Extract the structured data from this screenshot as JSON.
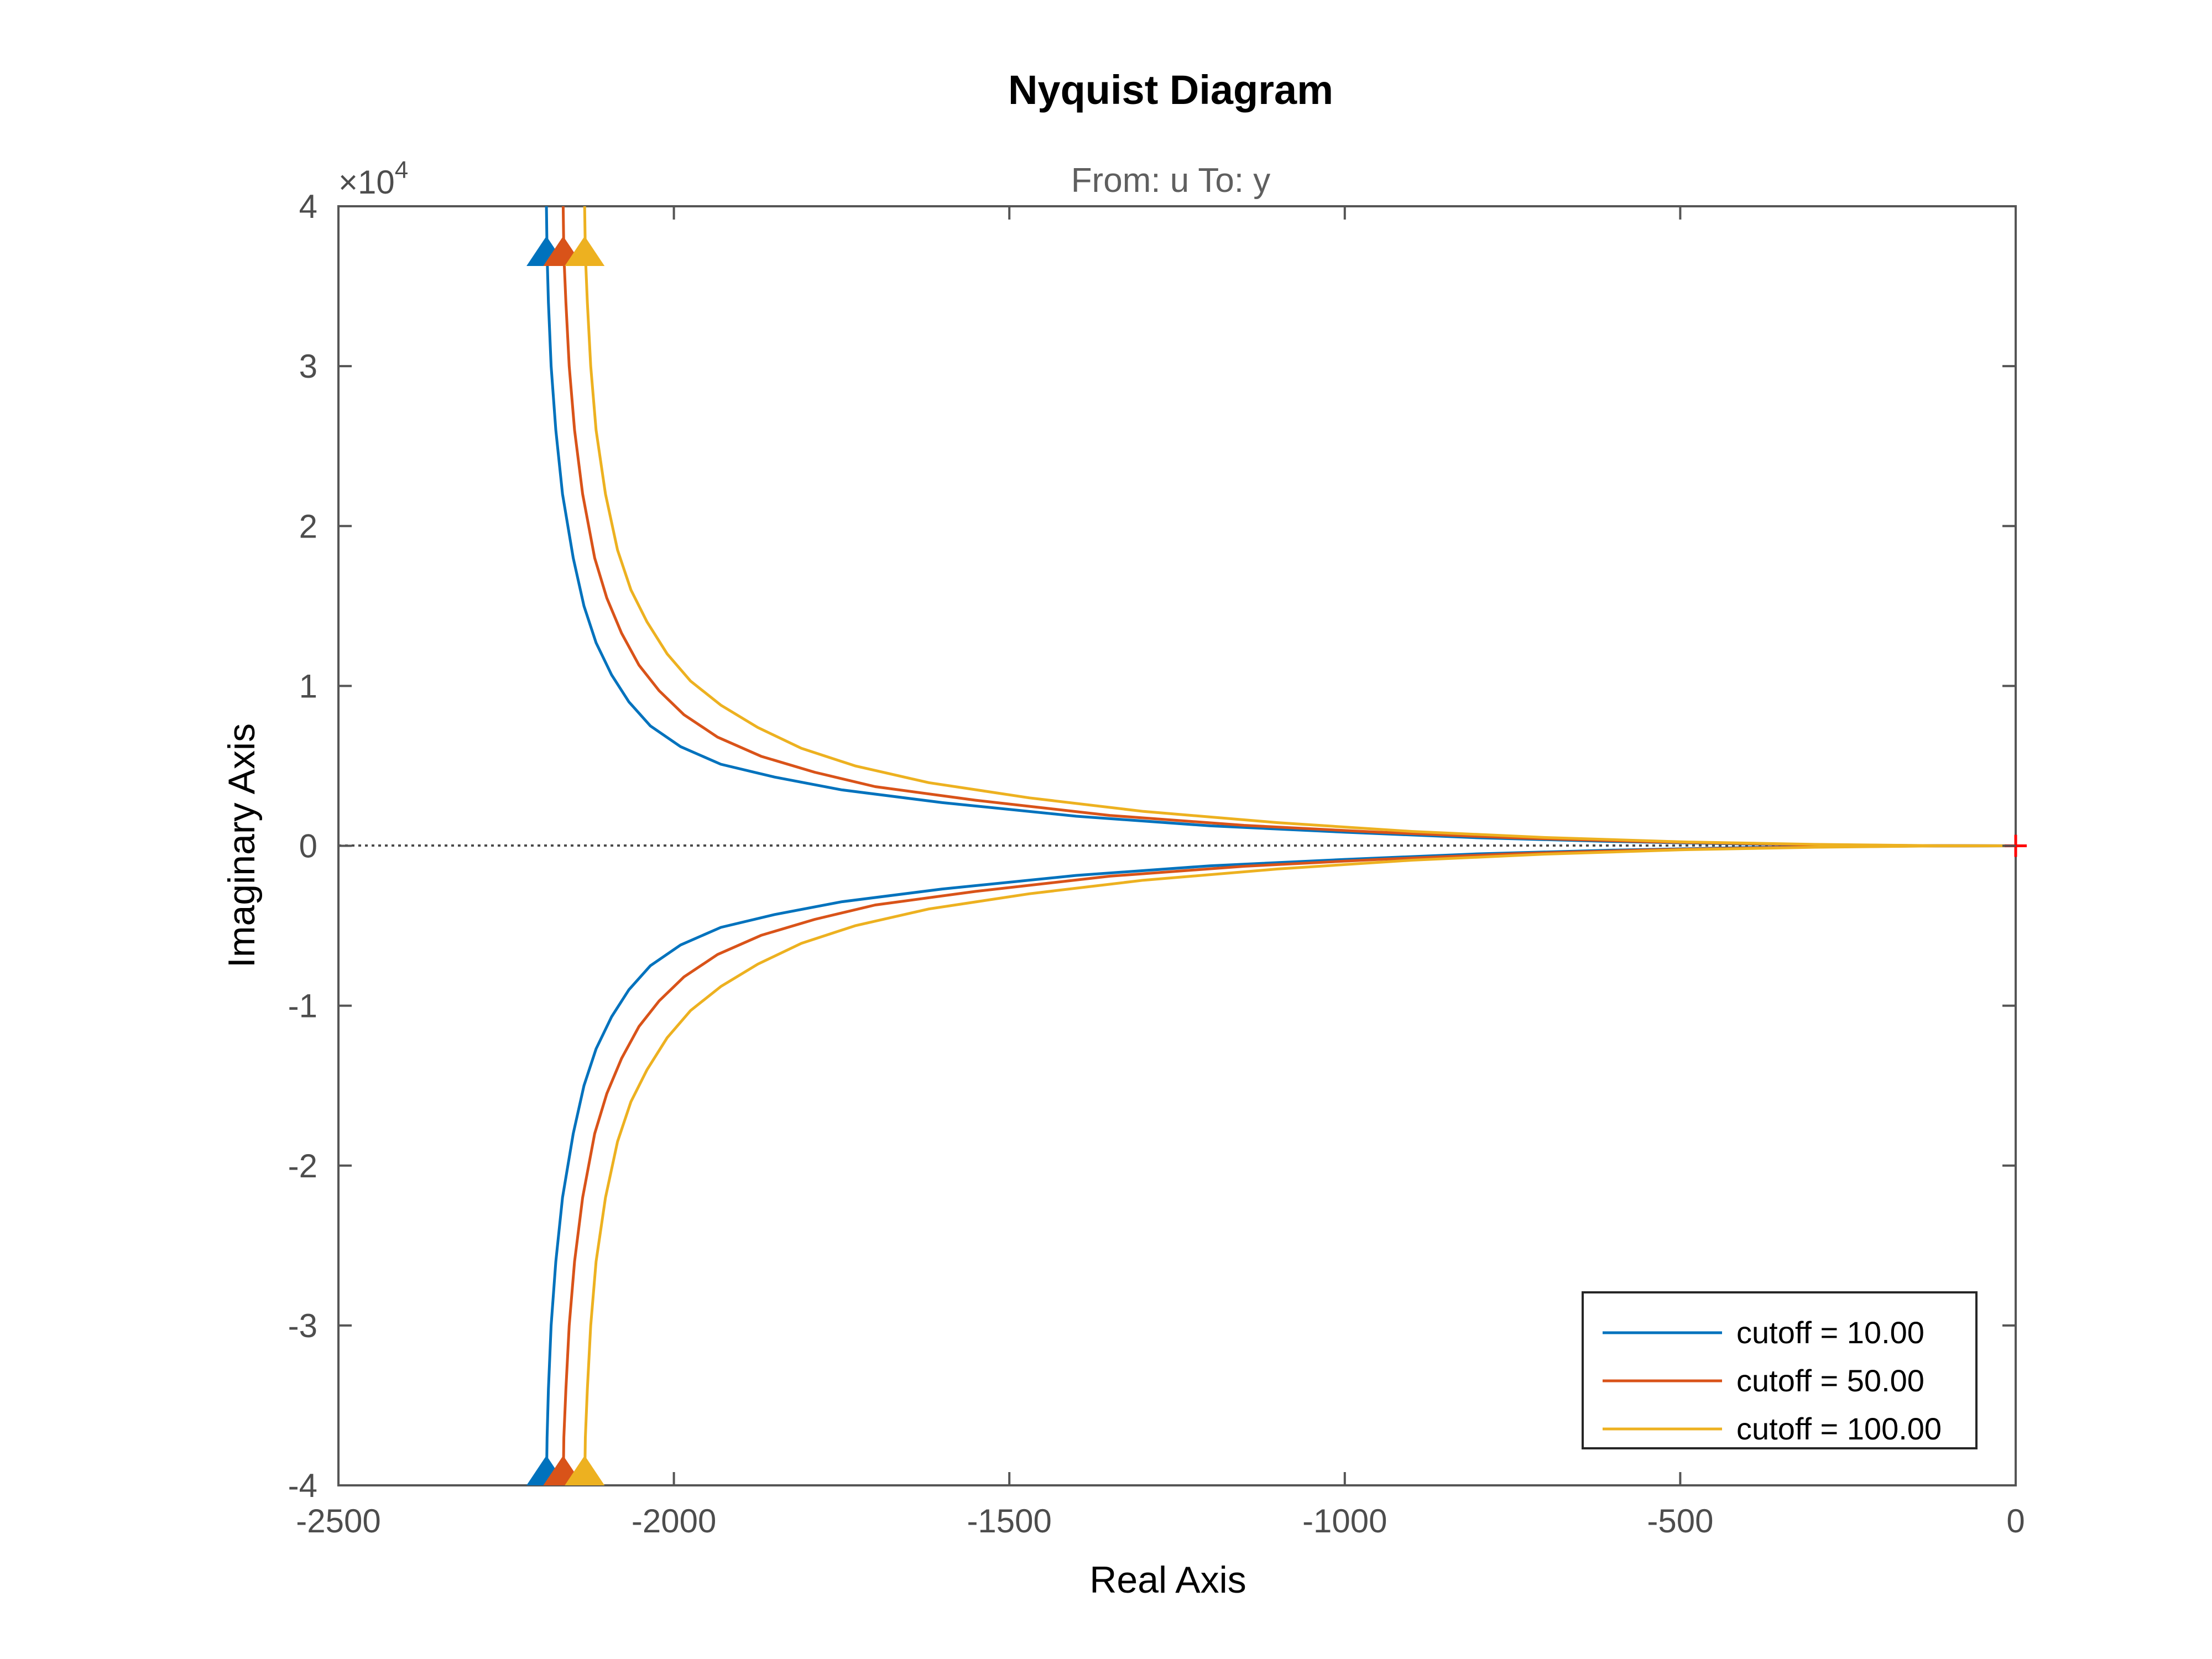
{
  "colors": {
    "background": "#ffffff",
    "axes": "#555555",
    "zero_line": "#4a4a4a",
    "critical_point": "#ff0000",
    "series": [
      "#0072BD",
      "#D95319",
      "#EDB120"
    ]
  },
  "chart_data": {
    "type": "line",
    "plot_kind": "Nyquist",
    "title": "Nyquist Diagram",
    "subtitle": "From: u  To: y",
    "xlabel": "Real Axis",
    "ylabel": "Imaginary Axis",
    "y_exponent_label": "×10",
    "y_exponent_power": "4",
    "y_scale": 10000,
    "xlim": [
      -2500,
      0
    ],
    "ylim": [
      -40000,
      40000
    ],
    "x_ticks": [
      -2500,
      -2000,
      -1500,
      -1000,
      -500,
      0
    ],
    "x_tick_labels": [
      "-2500",
      "-2000",
      "-1500",
      "-1000",
      "-500",
      "0"
    ],
    "y_ticks": [
      -40000,
      -30000,
      -20000,
      -10000,
      0,
      10000,
      20000,
      30000,
      40000
    ],
    "y_tick_labels": [
      "-4",
      "-3",
      "-2",
      "-1",
      "0",
      "1",
      "2",
      "3",
      "4"
    ],
    "grid": false,
    "zero_line": true,
    "critical_point": [
      0,
      0
    ],
    "legend_position": "bottom-right",
    "series": [
      {
        "name": "cutoff = 10.00",
        "arrow_x": -2190,
        "points": [
          [
            -2190,
            40000
          ],
          [
            -2189,
            37000
          ],
          [
            -2187,
            34000
          ],
          [
            -2183,
            30000
          ],
          [
            -2176,
            26000
          ],
          [
            -2166,
            22000
          ],
          [
            -2150,
            18000
          ],
          [
            -2134,
            15000
          ],
          [
            -2116,
            12700
          ],
          [
            -2093,
            10700
          ],
          [
            -2067,
            9000
          ],
          [
            -2035,
            7500
          ],
          [
            -1990,
            6200
          ],
          [
            -1930,
            5100
          ],
          [
            -1850,
            4300
          ],
          [
            -1750,
            3500
          ],
          [
            -1600,
            2700
          ],
          [
            -1400,
            1850
          ],
          [
            -1200,
            1250
          ],
          [
            -1000,
            850
          ],
          [
            -800,
            500
          ],
          [
            -600,
            270
          ],
          [
            -400,
            110
          ],
          [
            -200,
            25
          ],
          [
            0,
            0
          ]
        ]
      },
      {
        "name": "cutoff = 50.00",
        "arrow_x": -2165,
        "points": [
          [
            -2165,
            40000
          ],
          [
            -2164,
            37000
          ],
          [
            -2161,
            34000
          ],
          [
            -2156,
            30000
          ],
          [
            -2148,
            26000
          ],
          [
            -2136,
            22000
          ],
          [
            -2118,
            18000
          ],
          [
            -2100,
            15500
          ],
          [
            -2078,
            13300
          ],
          [
            -2052,
            11300
          ],
          [
            -2022,
            9700
          ],
          [
            -1985,
            8200
          ],
          [
            -1935,
            6800
          ],
          [
            -1870,
            5600
          ],
          [
            -1790,
            4600
          ],
          [
            -1700,
            3700
          ],
          [
            -1550,
            2850
          ],
          [
            -1350,
            1900
          ],
          [
            -1150,
            1280
          ],
          [
            -950,
            850
          ],
          [
            -750,
            500
          ],
          [
            -550,
            260
          ],
          [
            -350,
            100
          ],
          [
            -150,
            15
          ],
          [
            0,
            0
          ]
        ]
      },
      {
        "name": "cutoff = 100.00",
        "arrow_x": -2133,
        "points": [
          [
            -2133,
            40000
          ],
          [
            -2132,
            37000
          ],
          [
            -2129,
            34000
          ],
          [
            -2124,
            30000
          ],
          [
            -2116,
            26000
          ],
          [
            -2102,
            22000
          ],
          [
            -2084,
            18500
          ],
          [
            -2064,
            16000
          ],
          [
            -2040,
            14000
          ],
          [
            -2010,
            12000
          ],
          [
            -1975,
            10300
          ],
          [
            -1930,
            8800
          ],
          [
            -1875,
            7400
          ],
          [
            -1810,
            6100
          ],
          [
            -1730,
            5000
          ],
          [
            -1620,
            3950
          ],
          [
            -1470,
            3000
          ],
          [
            -1300,
            2150
          ],
          [
            -1100,
            1450
          ],
          [
            -900,
            900
          ],
          [
            -700,
            520
          ],
          [
            -500,
            250
          ],
          [
            -300,
            90
          ],
          [
            -120,
            12
          ],
          [
            0,
            0
          ]
        ]
      }
    ]
  }
}
